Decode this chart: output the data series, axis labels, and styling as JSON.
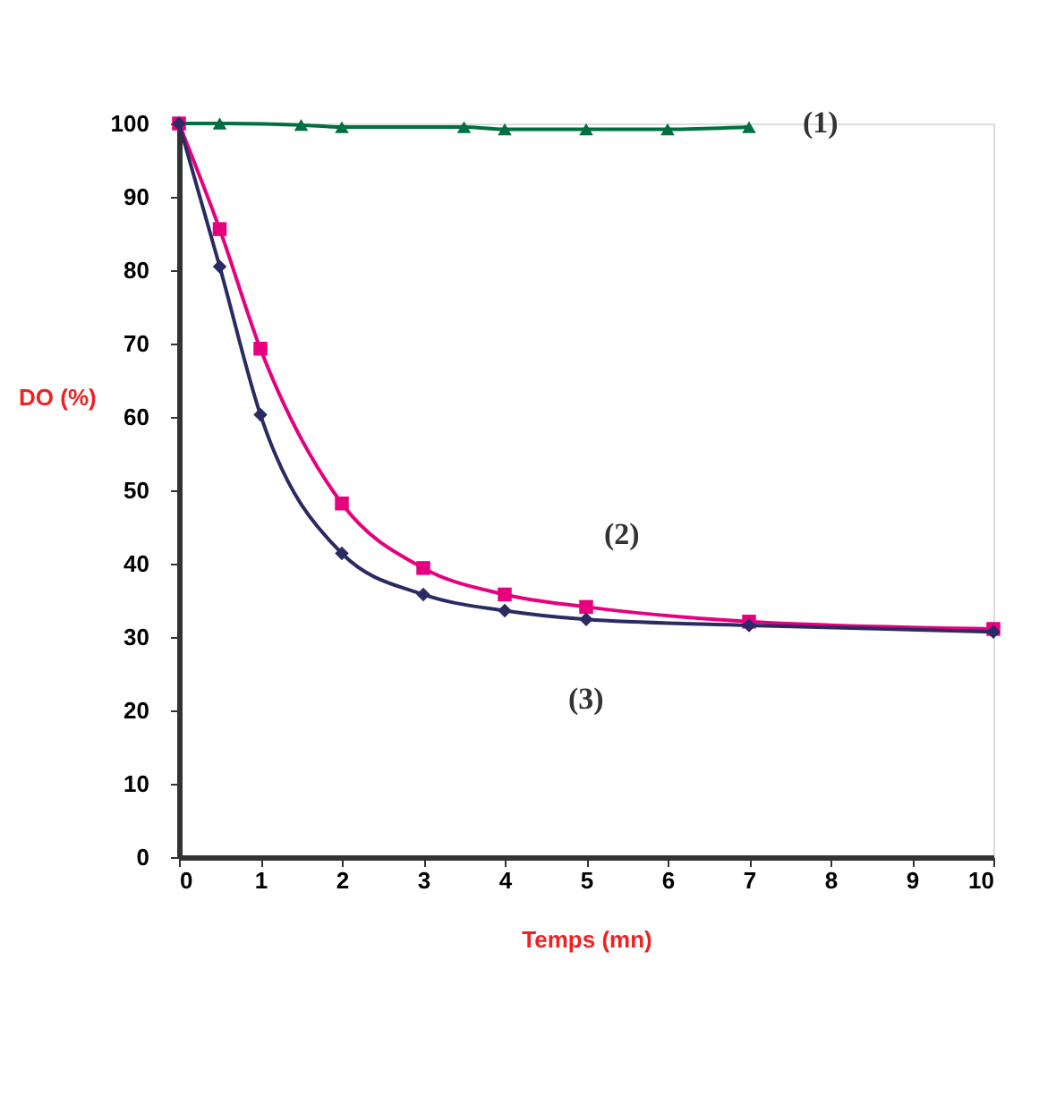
{
  "chart_data": {
    "type": "line",
    "xlabel": "Temps (mn)",
    "ylabel": "DO (%)",
    "xlim": [
      0,
      10
    ],
    "ylim": [
      0,
      100
    ],
    "xticks": [
      0,
      1,
      2,
      3,
      4,
      5,
      6,
      7,
      8,
      9,
      10
    ],
    "yticks": [
      0,
      10,
      20,
      30,
      40,
      50,
      60,
      70,
      80,
      90,
      100
    ],
    "grid": false,
    "series": [
      {
        "name": "(1)",
        "color": "#007040",
        "marker": "triangle",
        "x": [
          0,
          0.5,
          1.5,
          2,
          3.5,
          4,
          5,
          6,
          7
        ],
        "values": [
          100,
          100,
          99.8,
          99.5,
          99.5,
          99.2,
          99.2,
          99.2,
          99.5
        ]
      },
      {
        "name": "(2)",
        "color": "#e6007e",
        "marker": "square",
        "x": [
          0,
          0.5,
          1,
          2,
          3,
          4,
          5,
          7,
          10
        ],
        "values": [
          100,
          85.6,
          69.3,
          48.2,
          39.4,
          35.8,
          34.1,
          32.1,
          31.1
        ]
      },
      {
        "name": "(3)",
        "color": "#2b2b63",
        "marker": "diamond",
        "x": [
          0,
          0.5,
          1,
          2,
          3,
          4,
          5,
          7,
          10
        ],
        "values": [
          100,
          80.5,
          60.3,
          41.4,
          35.8,
          33.6,
          32.4,
          31.6,
          30.7
        ]
      }
    ]
  }
}
